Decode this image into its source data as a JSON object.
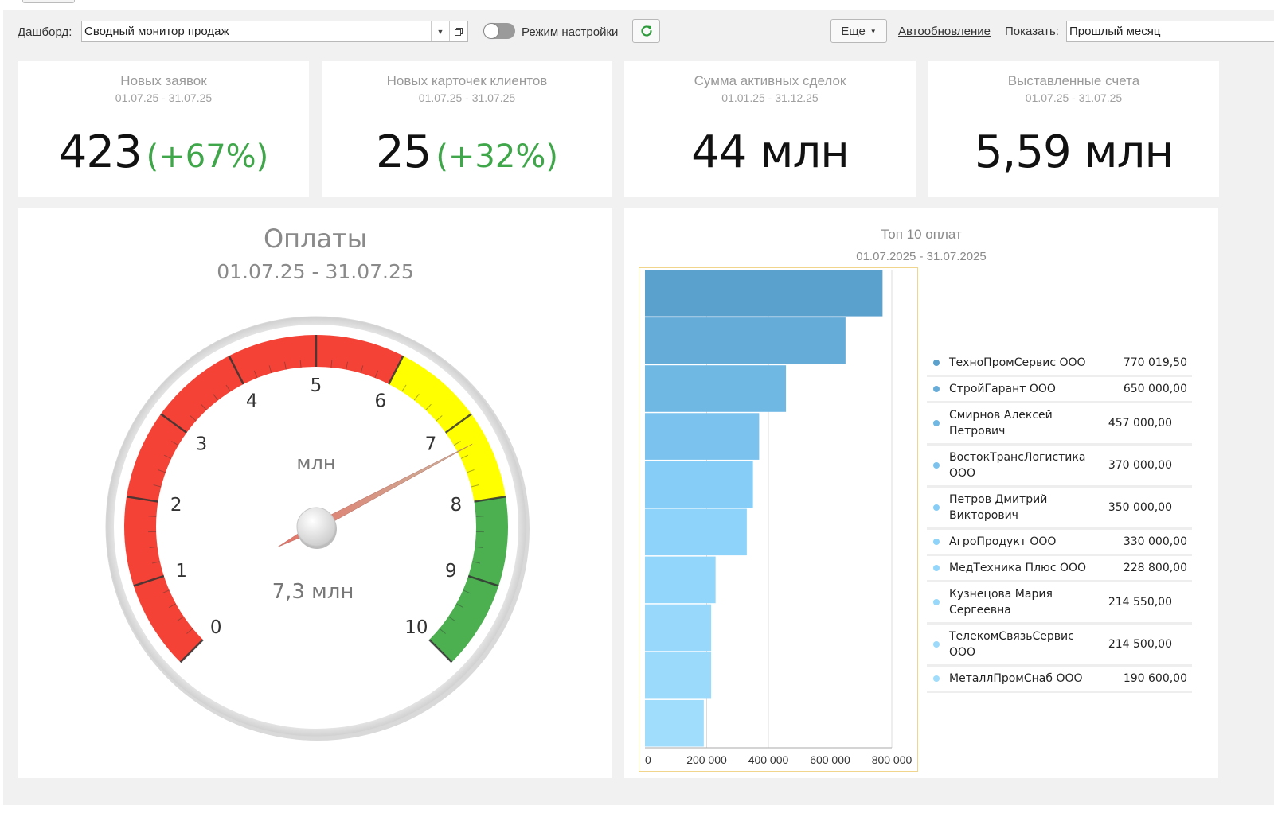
{
  "toolbar": {
    "dashboard_label": "Дашборд:",
    "dashboard_value": "Сводный монитор продаж",
    "settings_mode_label": "Режим настройки",
    "more_label": "Еще",
    "autorefresh_label": "Автообновление",
    "show_label": "Показать:",
    "period_value": "Прошлый месяц"
  },
  "kpis": [
    {
      "title": "Новых заявок",
      "dates": "01.07.25 - 31.07.25",
      "value": "423",
      "change": "(+67%)"
    },
    {
      "title": "Новых карточек клиентов",
      "dates": "01.07.25 - 31.07.25",
      "value": "25",
      "change": "(+32%)"
    },
    {
      "title": "Сумма активных сделок",
      "dates": "01.01.25 - 31.12.25",
      "value": "44 млн",
      "change": ""
    },
    {
      "title": "Выставленные счета",
      "dates": "01.07.25 - 31.07.25",
      "value": "5,59 млн",
      "change": ""
    }
  ],
  "gauge": {
    "title": "Оплаты",
    "dates": "01.07.25 - 31.07.25",
    "unit": "млн",
    "value": 7.3,
    "value_label": "7,3 млн",
    "min": 0,
    "max": 10,
    "ticks": [
      "0",
      "1",
      "2",
      "3",
      "4",
      "5",
      "6",
      "7",
      "8",
      "9",
      "10"
    ],
    "bands": [
      {
        "from": 0,
        "to": 6,
        "color": "#f44336"
      },
      {
        "from": 6,
        "to": 8,
        "color": "#ffff00"
      },
      {
        "from": 8,
        "to": 10,
        "color": "#4caf50"
      }
    ]
  },
  "chart_data": {
    "type": "bar",
    "orientation": "horizontal",
    "title": "Топ 10 оплат",
    "subtitle": "01.07.2025 - 31.07.2025",
    "categories": [
      "ТехноПромСервис ООО",
      "СтройГарант ООО",
      "Смирнов Алексей Петрович",
      "ВостокТрансЛогистика ООО",
      "Петров Дмитрий Викторович",
      "АгроПродукт ООО",
      "МедТехника Плюс ООО",
      "Кузнецова Мария Сергеевна",
      "ТелекомСвязьСервис ООО",
      "МеталлПромСнаб ООО"
    ],
    "values": [
      770019.5,
      650000,
      457000,
      370000,
      350000,
      330000,
      228800,
      214550,
      214500,
      190600
    ],
    "value_labels": [
      "770 019,50",
      "650 000,00",
      "457 000,00",
      "370 000,00",
      "350 000,00",
      "330 000,00",
      "228 800,00",
      "214 550,00",
      "214 500,00",
      "190 600,00"
    ],
    "colors": [
      "#5ba1cd",
      "#66acd9",
      "#70b8e4",
      "#7bc3ee",
      "#86cef8",
      "#8dd3fa",
      "#92d6fb",
      "#97d8fb",
      "#9bdafb",
      "#a0ddfc"
    ],
    "xlim": [
      0,
      800000
    ],
    "xticks": [
      "0",
      "200 000",
      "400 000",
      "600 000",
      "800 000"
    ],
    "grid": true,
    "legend_position": "right"
  }
}
